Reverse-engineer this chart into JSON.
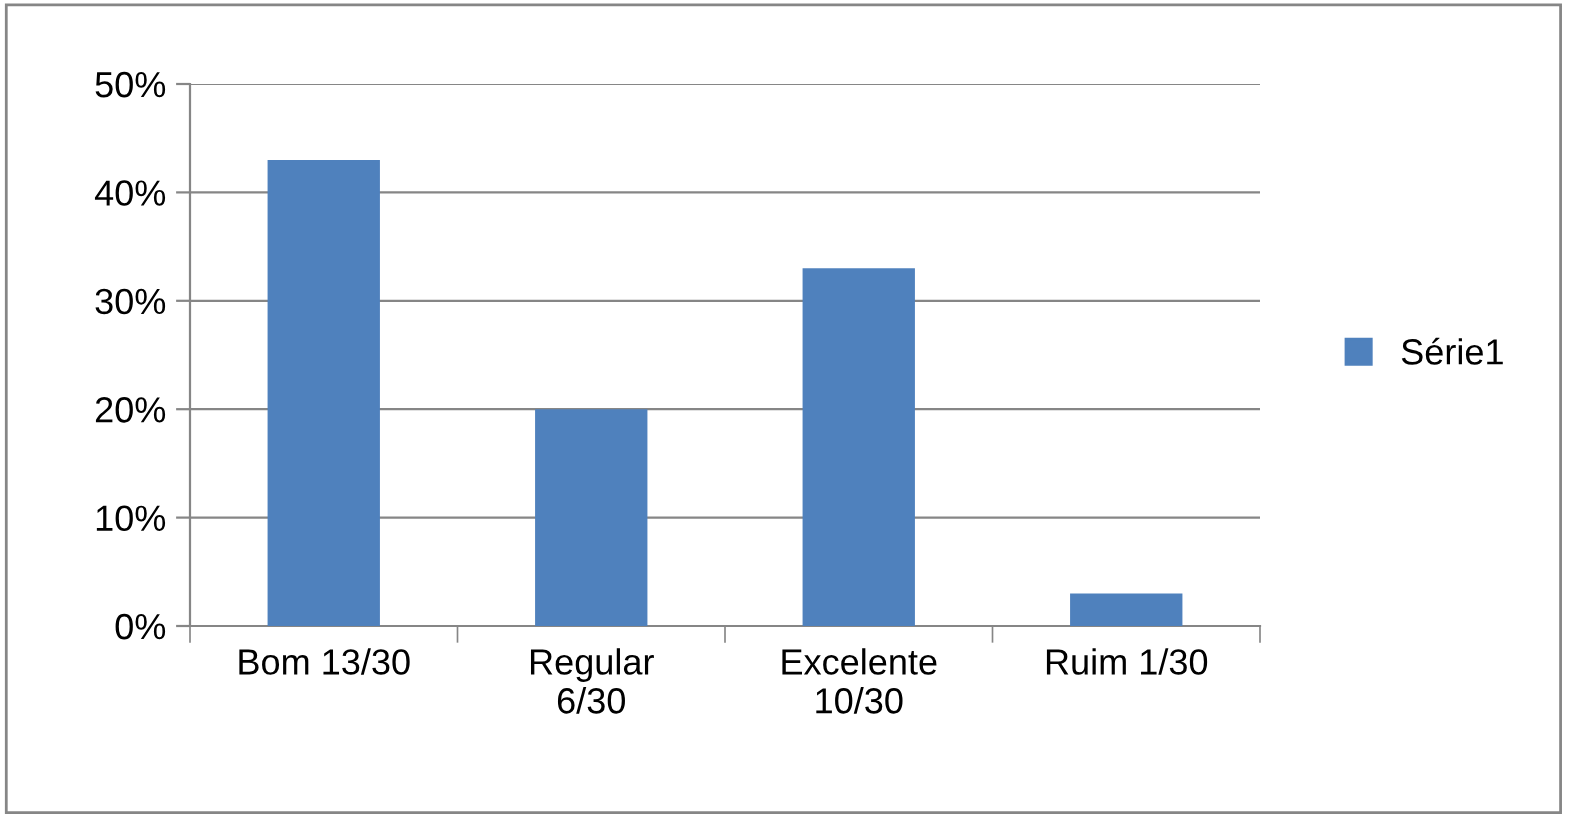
{
  "chart_data": {
    "type": "bar",
    "categories": [
      "Bom 13/30",
      "Regular\n6/30",
      "Excelente\n10/30",
      "Ruim 1/30"
    ],
    "series": [
      {
        "name": "Série1",
        "color": "#4f81bd",
        "values": [
          43,
          20,
          33,
          3
        ]
      }
    ],
    "ylim": [
      0,
      50
    ],
    "yticks": [
      {
        "value": 0,
        "label": "0%"
      },
      {
        "value": 10,
        "label": "10%"
      },
      {
        "value": 20,
        "label": "20%"
      },
      {
        "value": 30,
        "label": "30%"
      },
      {
        "value": 40,
        "label": "40%"
      },
      {
        "value": 50,
        "label": "50%"
      }
    ],
    "grid": "y",
    "legend": "right"
  }
}
